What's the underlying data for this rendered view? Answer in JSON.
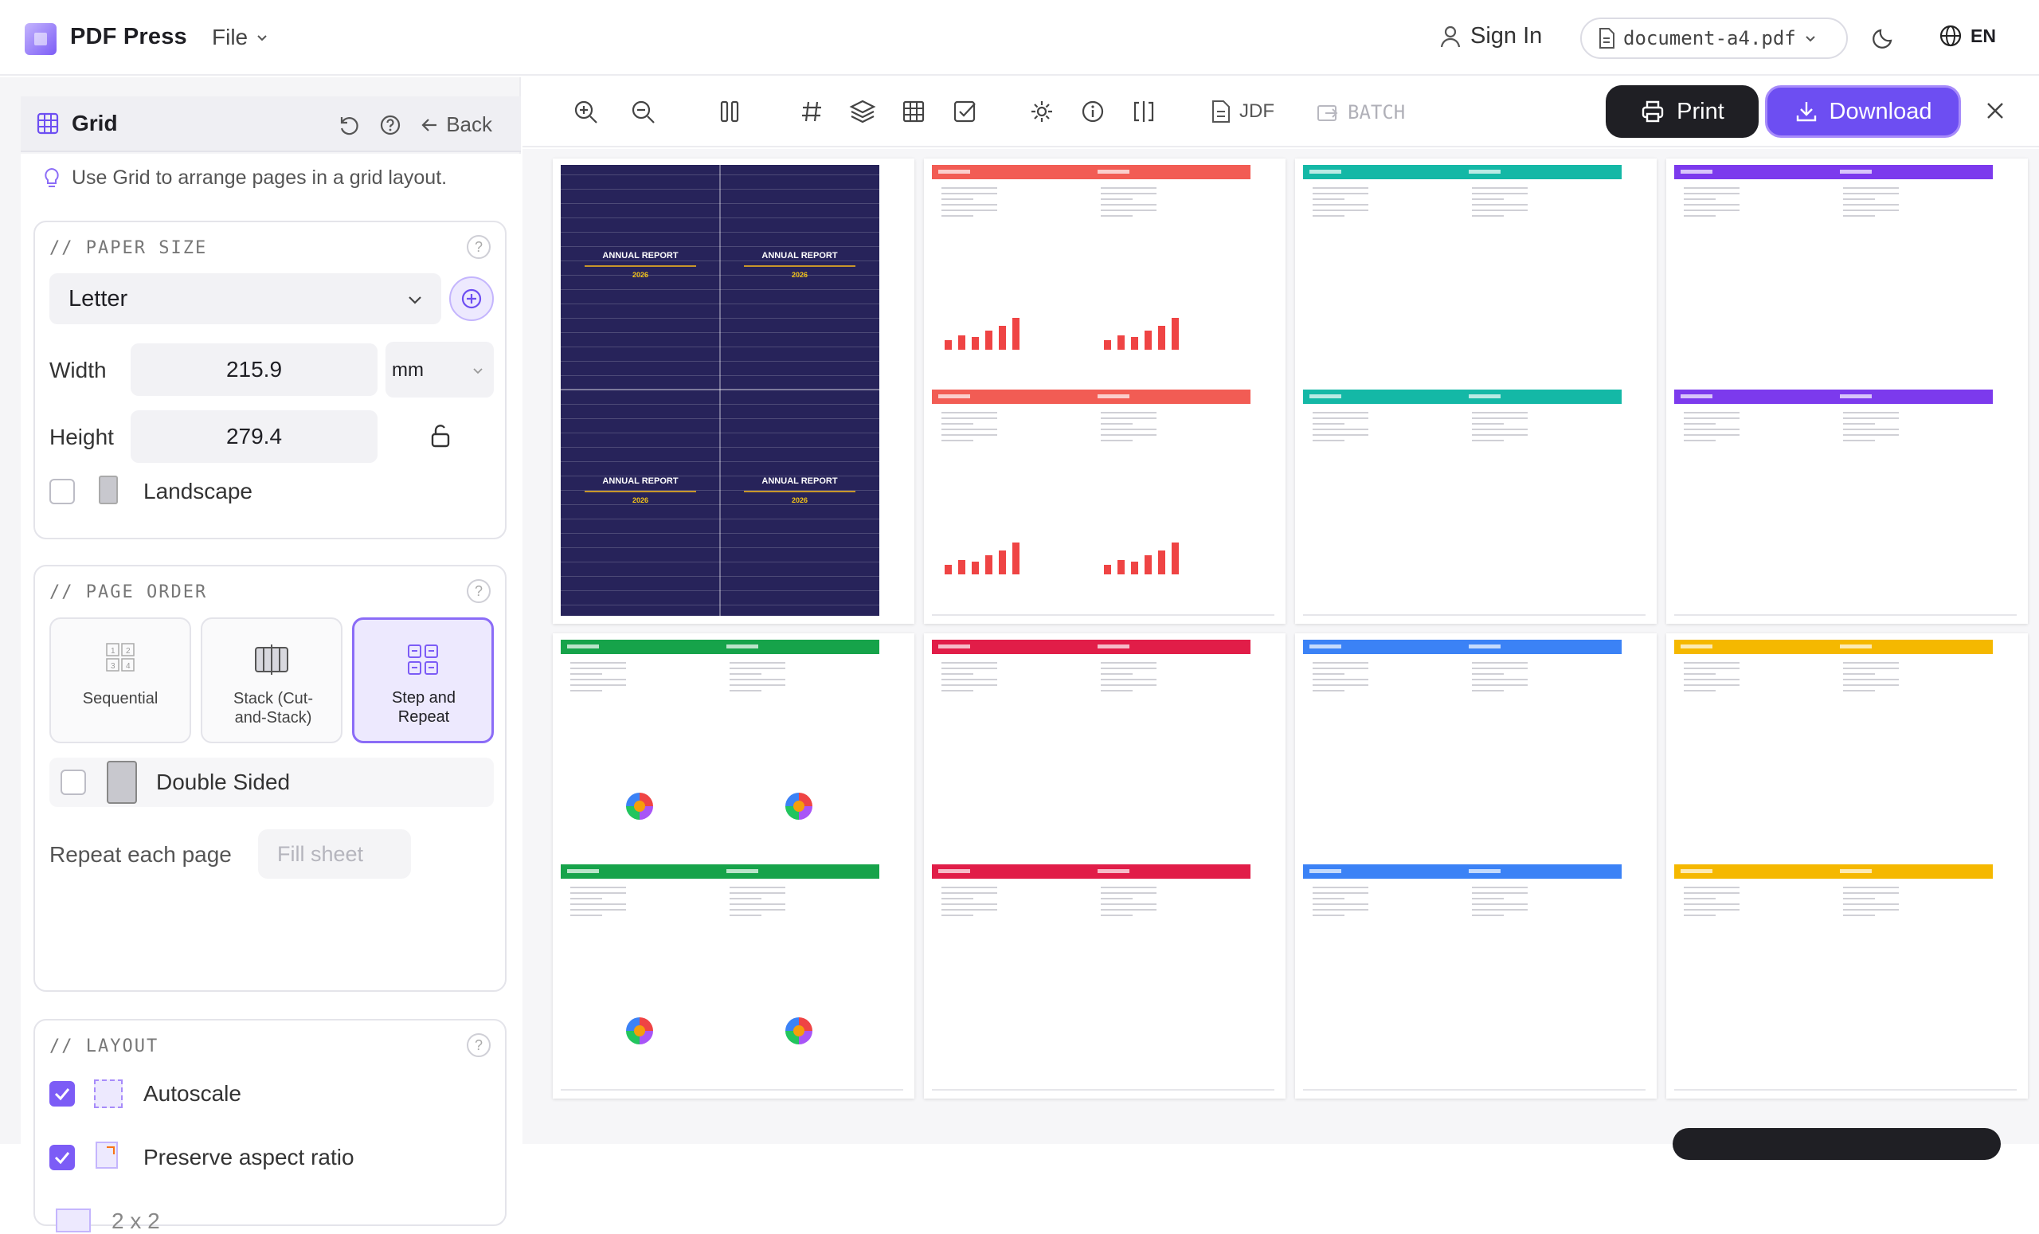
{
  "header": {
    "brand": "PDF Press",
    "file_menu": "File",
    "sign_in": "Sign In",
    "document_name": "document-a4.pdf",
    "language": "EN"
  },
  "sidebar": {
    "title": "Grid",
    "back_label": "Back",
    "hint": "Use Grid to arrange pages in a grid layout.",
    "paper_size": {
      "section_title": "// PAPER SIZE",
      "selected": "Letter",
      "width_label": "Width",
      "width_value": "215.9",
      "unit": "mm",
      "height_label": "Height",
      "height_value": "279.4",
      "landscape_label": "Landscape",
      "landscape_checked": false
    },
    "page_order": {
      "section_title": "// PAGE ORDER",
      "options": [
        {
          "label": "Sequential",
          "selected": false
        },
        {
          "label": "Stack (Cut-and-Stack)",
          "selected": false
        },
        {
          "label": "Step and Repeat",
          "selected": true
        }
      ],
      "double_sided_label": "Double Sided",
      "double_sided_checked": false,
      "repeat_label": "Repeat each page",
      "fill_sheet_label": "Fill sheet"
    },
    "layout": {
      "section_title": "// LAYOUT",
      "autoscale_label": "Autoscale",
      "autoscale_checked": true,
      "preserve_label": "Preserve aspect ratio",
      "preserve_checked": true,
      "grid_size": "2 x 2"
    }
  },
  "toolbar": {
    "jdf_label": "JDF",
    "batch_label": "BATCH",
    "print_label": "Print",
    "download_label": "Download"
  },
  "preview": {
    "cover_title": "ANNUAL REPORT",
    "cover_year": "2026",
    "sheet_colors": [
      "#27235a",
      "#f25c54",
      "#14b8a6",
      "#7c3aed",
      "#16a34a",
      "#e11d48",
      "#3b82f6",
      "#f5b800"
    ]
  },
  "colors": {
    "accent": "#6d4ef2",
    "accent_light": "#ede9fe",
    "dark_button": "#1f1f24"
  }
}
